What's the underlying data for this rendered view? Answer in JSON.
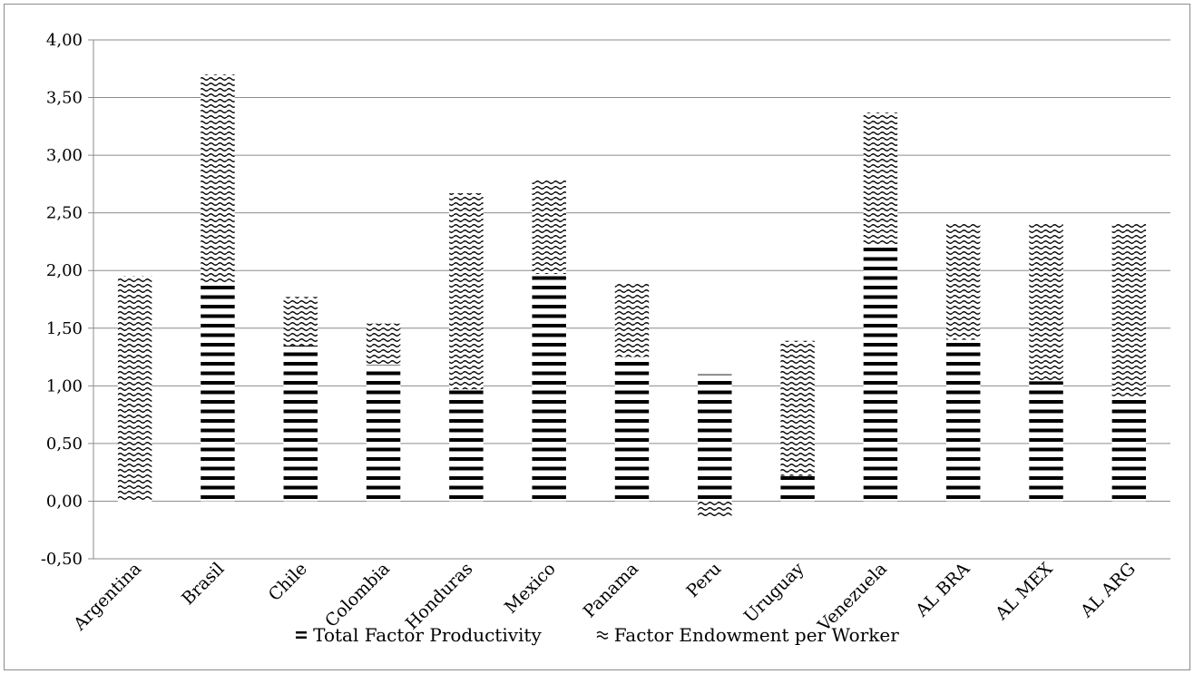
{
  "chart_data": {
    "type": "bar",
    "stacked": true,
    "categories": [
      "Argentina",
      "Brasil",
      "Chile",
      "Colombia",
      "Honduras",
      "Mexico",
      "Panama",
      "Peru",
      "Uruguay",
      "Venezuela",
      "AL BRA",
      "AL MEX",
      "AL ARG"
    ],
    "series": [
      {
        "name": "Total Factor Productivity",
        "pattern": "horizontal-stripes",
        "values": [
          -0.03,
          1.9,
          1.35,
          1.18,
          0.97,
          1.97,
          1.25,
          1.1,
          0.22,
          2.22,
          1.4,
          1.04,
          0.91
        ]
      },
      {
        "name": "Factor Endowment per Worker",
        "pattern": "waves",
        "values": [
          1.95,
          1.8,
          0.42,
          0.36,
          1.7,
          0.82,
          0.64,
          -0.14,
          1.17,
          1.15,
          1.01,
          1.37,
          1.5
        ]
      }
    ],
    "ylim": [
      -0.5,
      4.0
    ],
    "yticks": [
      "-0,50",
      "0,00",
      "0,50",
      "1,00",
      "1,50",
      "2,00",
      "2,50",
      "3,00",
      "3,50",
      "4,00"
    ],
    "ytick_values": [
      -0.5,
      0,
      0.5,
      1.0,
      1.5,
      2.0,
      2.5,
      3.0,
      3.5,
      4.0
    ],
    "grid": true,
    "legend_position": "bottom",
    "title": "",
    "xlabel": "",
    "ylabel": ""
  },
  "legend": {
    "tfp_label": "Total Factor Productivity",
    "fepw_label": "Factor Endowment per Worker"
  }
}
